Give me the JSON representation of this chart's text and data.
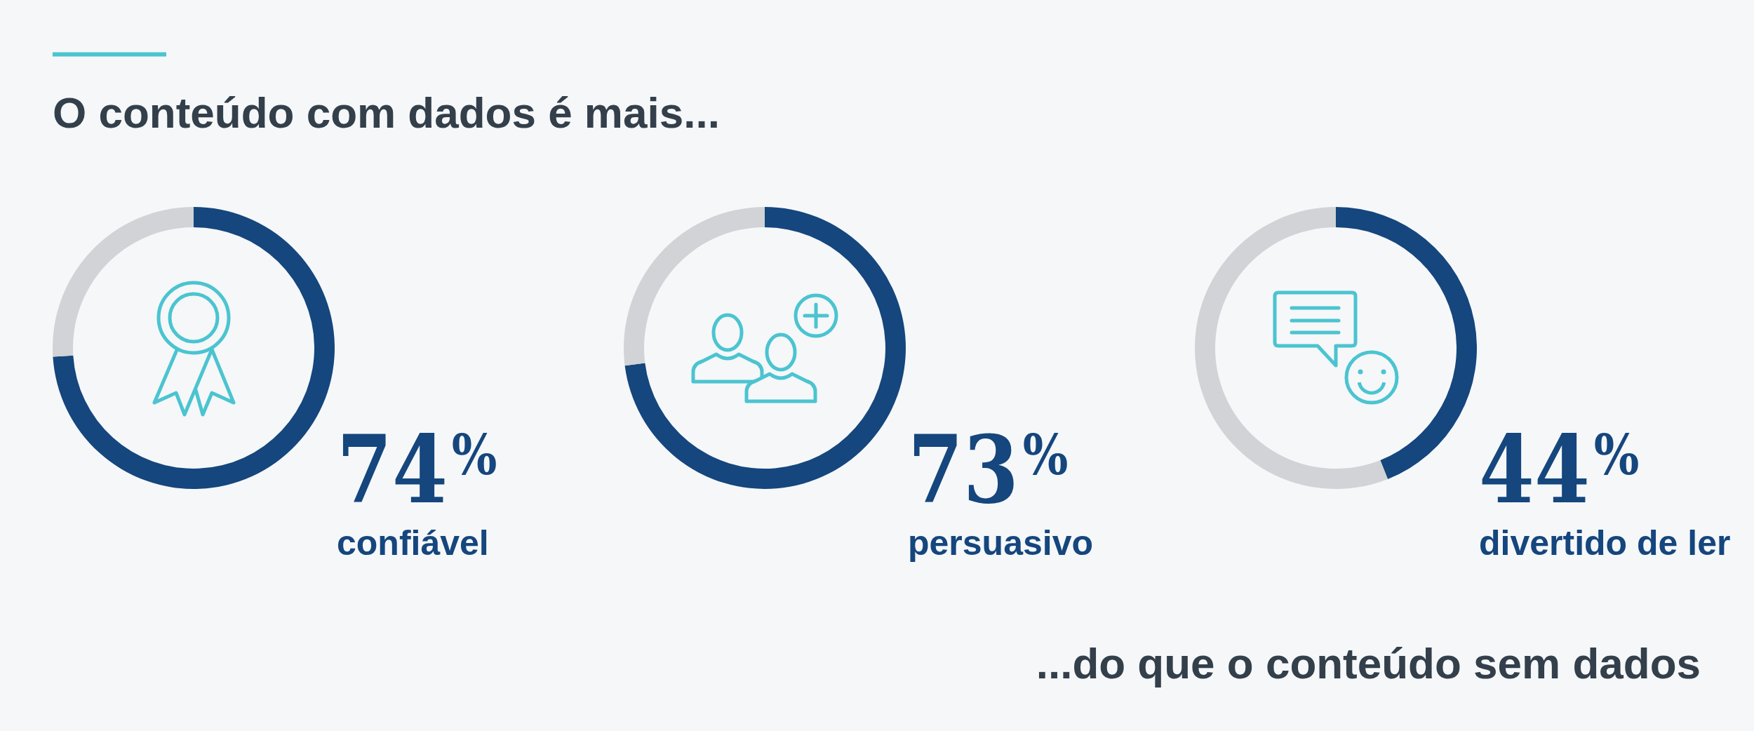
{
  "chart_data": [
    {
      "type": "donut",
      "title": "O conteúdo com dados é mais...",
      "categories": [
        "confiável",
        null
      ],
      "values": [
        74,
        26
      ],
      "colors": [
        "#15467d",
        "#d1d3d6"
      ],
      "value_labels": [
        "74$^{%}$",
        null
      ]
    },
    {
      "type": "donut",
      "categories": [
        "persuasivo",
        null
      ],
      "values": [
        73,
        27
      ],
      "colors": [
        "#15467d",
        "#d1d3d6"
      ],
      "value_labels": [
        "73$^{%}$",
        null
      ]
    },
    {
      "type": "donut",
      "categories": [
        "divertido de ler",
        null
      ],
      "values": [
        44,
        56
      ],
      "colors": [
        "#15467d",
        "#d1d3d6"
      ],
      "value_labels": [
        "44$^{%}$",
        null
      ],
      "annotations": [
        "...do que o conteúdo sem dados"
      ]
    }
  ]
}
